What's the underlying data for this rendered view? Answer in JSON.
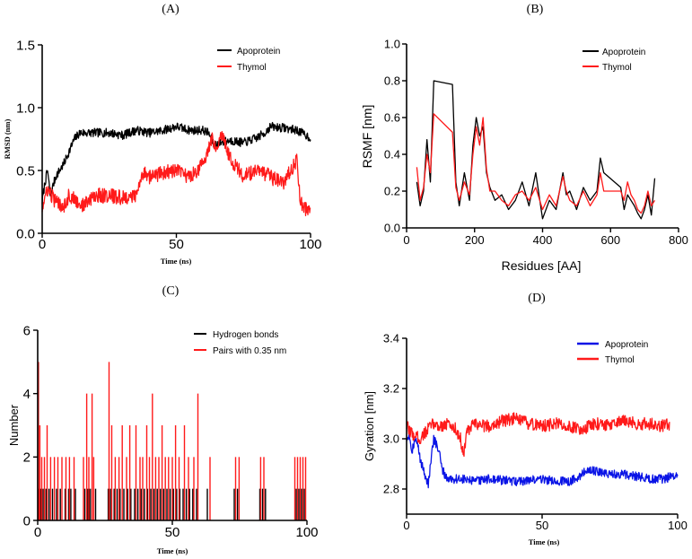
{
  "colors": {
    "black": "#000000",
    "red": "#ff1a1a",
    "blue": "#0a14e6"
  },
  "chart_data": [
    {
      "id": "A",
      "panel_label": "(A)",
      "type": "line",
      "title": "",
      "xlabel": "Time (ns)",
      "ylabel": "RMSD (nm)",
      "xlim": [
        0,
        100
      ],
      "ylim": [
        0,
        1.5
      ],
      "xticks": [
        "0",
        "50",
        "100"
      ],
      "yticks": [
        "0.0",
        "0.5",
        "1.0",
        "1.5"
      ],
      "xtick_values": [
        0,
        50,
        100
      ],
      "ytick_values": [
        0,
        0.5,
        1.0,
        1.5
      ],
      "legend_position": "top-right",
      "series": [
        {
          "name": "Apoprotein",
          "color": "black",
          "noise": 0.035,
          "x": [
            0,
            1,
            2,
            3,
            5,
            8,
            10,
            12,
            14,
            16,
            20,
            25,
            30,
            35,
            40,
            45,
            50,
            55,
            60,
            62,
            64,
            66,
            70,
            75,
            80,
            83,
            85,
            90,
            95,
            100
          ],
          "y": [
            0.25,
            0.4,
            0.5,
            0.3,
            0.45,
            0.55,
            0.65,
            0.75,
            0.8,
            0.8,
            0.8,
            0.8,
            0.78,
            0.82,
            0.8,
            0.82,
            0.85,
            0.82,
            0.82,
            0.8,
            0.7,
            0.72,
            0.74,
            0.72,
            0.76,
            0.8,
            0.85,
            0.84,
            0.82,
            0.76
          ]
        },
        {
          "name": "Thymol",
          "color": "red",
          "noise": 0.06,
          "x": [
            0,
            2,
            5,
            8,
            10,
            15,
            20,
            25,
            30,
            35,
            38,
            40,
            45,
            50,
            55,
            60,
            63,
            65,
            67,
            70,
            75,
            80,
            85,
            90,
            94,
            95,
            96,
            97,
            100
          ],
          "y": [
            0.2,
            0.35,
            0.25,
            0.22,
            0.3,
            0.22,
            0.3,
            0.3,
            0.28,
            0.3,
            0.5,
            0.45,
            0.48,
            0.5,
            0.45,
            0.55,
            0.75,
            0.7,
            0.8,
            0.6,
            0.45,
            0.5,
            0.45,
            0.4,
            0.55,
            0.6,
            0.3,
            0.2,
            0.18
          ]
        }
      ]
    },
    {
      "id": "B",
      "panel_label": "(B)",
      "type": "line",
      "title": "",
      "xlabel": "Residues [AA]",
      "ylabel": "RSMF [nm]",
      "xlim": [
        0,
        800
      ],
      "ylim": [
        0,
        1.0
      ],
      "xticks": [
        "0",
        "200",
        "400",
        "600",
        "800"
      ],
      "yticks": [
        "0.0",
        "0.2",
        "0.4",
        "0.6",
        "0.8",
        "1.0"
      ],
      "xtick_values": [
        0,
        200,
        400,
        600,
        800
      ],
      "ytick_values": [
        0,
        0.2,
        0.4,
        0.6,
        0.8,
        1.0
      ],
      "legend_position": "top-right",
      "series": [
        {
          "name": "Apoprotein",
          "color": "black",
          "noise": 0,
          "x": [
            30,
            40,
            50,
            60,
            70,
            80,
            135,
            145,
            155,
            170,
            185,
            195,
            205,
            215,
            225,
            235,
            245,
            260,
            280,
            300,
            320,
            340,
            360,
            380,
            400,
            420,
            440,
            460,
            470,
            480,
            500,
            520,
            540,
            560,
            570,
            580,
            630,
            640,
            650,
            660,
            670,
            680,
            690,
            700,
            710,
            720,
            730
          ],
          "y": [
            0.25,
            0.12,
            0.2,
            0.48,
            0.25,
            0.8,
            0.78,
            0.25,
            0.12,
            0.3,
            0.15,
            0.45,
            0.6,
            0.5,
            0.55,
            0.3,
            0.22,
            0.15,
            0.18,
            0.1,
            0.15,
            0.25,
            0.12,
            0.3,
            0.05,
            0.15,
            0.1,
            0.3,
            0.18,
            0.2,
            0.1,
            0.22,
            0.15,
            0.2,
            0.38,
            0.3,
            0.22,
            0.1,
            0.18,
            0.15,
            0.12,
            0.08,
            0.05,
            0.1,
            0.18,
            0.07,
            0.27
          ]
        },
        {
          "name": "Thymol",
          "color": "red",
          "noise": 0,
          "x": [
            30,
            40,
            50,
            60,
            70,
            80,
            135,
            145,
            155,
            170,
            185,
            195,
            205,
            215,
            225,
            235,
            245,
            260,
            280,
            300,
            320,
            340,
            360,
            380,
            400,
            420,
            440,
            460,
            470,
            480,
            500,
            520,
            540,
            560,
            570,
            580,
            630,
            640,
            650,
            660,
            670,
            680,
            690,
            700,
            710,
            720,
            730
          ],
          "y": [
            0.33,
            0.15,
            0.22,
            0.4,
            0.3,
            0.62,
            0.52,
            0.22,
            0.15,
            0.25,
            0.18,
            0.4,
            0.55,
            0.45,
            0.6,
            0.32,
            0.2,
            0.2,
            0.15,
            0.12,
            0.18,
            0.2,
            0.15,
            0.22,
            0.1,
            0.18,
            0.12,
            0.28,
            0.2,
            0.15,
            0.12,
            0.2,
            0.12,
            0.18,
            0.3,
            0.2,
            0.2,
            0.15,
            0.25,
            0.18,
            0.15,
            0.1,
            0.08,
            0.12,
            0.2,
            0.12,
            0.15
          ]
        }
      ]
    },
    {
      "id": "C",
      "panel_label": "(C)",
      "type": "bar",
      "title": "",
      "xlabel": "Time (ns)",
      "ylabel": "Number",
      "xlim": [
        0,
        100
      ],
      "ylim": [
        0,
        6
      ],
      "xticks": [
        "0",
        "50",
        "100"
      ],
      "yticks": [
        "0",
        "2",
        "4",
        "6"
      ],
      "xtick_values": [
        0,
        50,
        100
      ],
      "ytick_values": [
        0,
        2,
        4,
        6
      ],
      "legend_position": "top-right",
      "series": [
        {
          "name": "Hydrogen bonds",
          "color": "black",
          "x": [
            0.5,
            1.2,
            2.0,
            3.1,
            4.2,
            5.5,
            7.0,
            8.4,
            10.2,
            11.5,
            12.3,
            14.0,
            17.5,
            18.6,
            19.4,
            20.1,
            21.5,
            26.2,
            27.0,
            28.4,
            29.5,
            30.6,
            32.0,
            33.4,
            34.6,
            36.0,
            37.2,
            38.4,
            39.6,
            40.8,
            42.0,
            43.2,
            44.4,
            45.6,
            46.8,
            48.0,
            49.2,
            50.4,
            51.6,
            52.8,
            54.0,
            55.2,
            56.4,
            57.6,
            59.0,
            63.0,
            73.0,
            74.2,
            82.5,
            83.5,
            84.6,
            96.0,
            97.0,
            98.0,
            99.0
          ],
          "y": [
            1,
            1,
            1,
            1,
            1,
            1,
            1,
            1,
            1,
            1,
            1,
            1,
            1,
            1,
            1,
            1,
            1,
            1,
            1,
            1,
            1,
            1,
            1,
            1,
            1,
            1,
            1,
            1,
            1,
            1,
            1,
            1,
            1,
            1,
            1,
            1,
            1,
            1,
            1,
            1,
            1,
            1,
            1,
            1,
            1,
            1,
            1,
            1,
            1,
            1,
            1,
            1,
            1,
            1,
            1
          ]
        },
        {
          "name": "Pairs with 0.35 nm",
          "color": "red",
          "x": [
            0.3,
            0.8,
            1.5,
            2.5,
            3.5,
            4.8,
            6.2,
            7.5,
            9.0,
            10.5,
            11.8,
            13.5,
            17.0,
            18.2,
            19.0,
            20.2,
            20.8,
            26.5,
            27.5,
            28.8,
            30.2,
            31.4,
            33.0,
            34.2,
            36.5,
            38.0,
            39.0,
            40.5,
            41.5,
            42.6,
            43.8,
            45.0,
            46.2,
            47.4,
            48.6,
            50.0,
            51.2,
            52.5,
            54.5,
            56.0,
            58.0,
            59.5,
            64.0,
            73.5,
            74.8,
            82.8,
            84.0,
            95.5,
            96.5,
            97.5,
            98.5,
            99.5
          ],
          "y": [
            5,
            3,
            2,
            2,
            3,
            2,
            2,
            2,
            2,
            2,
            2,
            2,
            2,
            4,
            2,
            4,
            2,
            5,
            3,
            2,
            2,
            3,
            2,
            3,
            3,
            2,
            2,
            3,
            2,
            4,
            2,
            2,
            3,
            2,
            2,
            2,
            3,
            2,
            3,
            2,
            2,
            4,
            2,
            2,
            2,
            2,
            2,
            2,
            2,
            2,
            2,
            2
          ]
        }
      ]
    },
    {
      "id": "D",
      "panel_label": "(D)",
      "type": "line",
      "title": "",
      "xlabel": "Time (ns)",
      "ylabel": "Gyration [nm]",
      "xlim": [
        0,
        100
      ],
      "ylim": [
        2.7,
        3.4
      ],
      "xticks": [
        "0",
        "50",
        "100"
      ],
      "yticks": [
        "2.8",
        "3.0",
        "3.2",
        "3.4"
      ],
      "xtick_values": [
        0,
        50,
        100
      ],
      "ytick_values": [
        2.8,
        3.0,
        3.2,
        3.4
      ],
      "legend_position": "top-right",
      "series": [
        {
          "name": "Apoprotein",
          "color": "blue",
          "noise": 0.018,
          "x": [
            0,
            1,
            2,
            3,
            4,
            5,
            7,
            8,
            10,
            12,
            13,
            15,
            20,
            25,
            30,
            40,
            50,
            55,
            60,
            65,
            67,
            70,
            75,
            80,
            85,
            90,
            95,
            100
          ],
          "y": [
            3.0,
            3.02,
            2.95,
            3.0,
            2.98,
            2.92,
            2.85,
            2.82,
            3.0,
            2.95,
            2.88,
            2.84,
            2.84,
            2.83,
            2.84,
            2.83,
            2.84,
            2.83,
            2.83,
            2.86,
            2.88,
            2.87,
            2.86,
            2.86,
            2.85,
            2.84,
            2.84,
            2.86
          ]
        },
        {
          "name": "Thymol",
          "color": "red",
          "noise": 0.025,
          "x": [
            0,
            2,
            5,
            8,
            10,
            12,
            15,
            18,
            20,
            21,
            22,
            25,
            30,
            35,
            40,
            45,
            50,
            55,
            60,
            65,
            70,
            75,
            80,
            85,
            90,
            95,
            97
          ],
          "y": [
            3.05,
            3.02,
            3.0,
            3.04,
            3.06,
            3.05,
            3.06,
            3.04,
            3.0,
            2.92,
            3.02,
            3.06,
            3.05,
            3.07,
            3.08,
            3.06,
            3.05,
            3.06,
            3.05,
            3.04,
            3.06,
            3.05,
            3.07,
            3.06,
            3.06,
            3.05,
            3.06
          ]
        }
      ]
    }
  ]
}
